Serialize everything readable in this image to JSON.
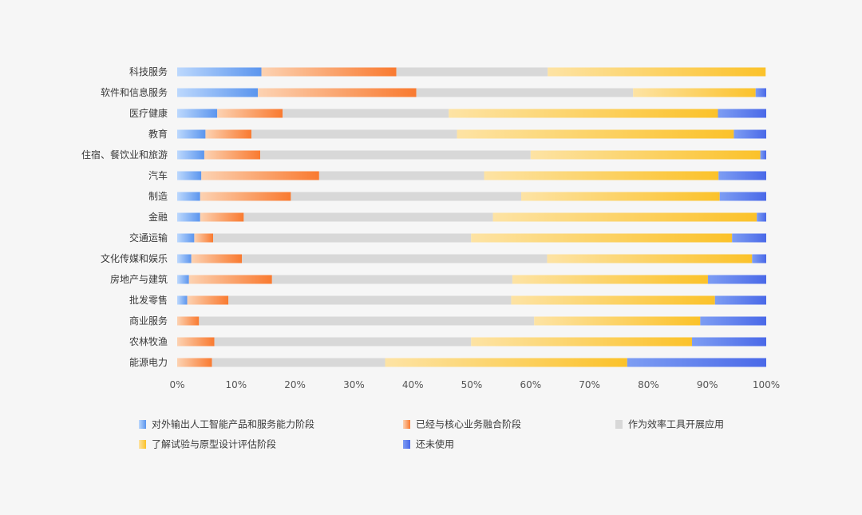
{
  "chart_data": {
    "type": "bar",
    "orientation": "horizontal",
    "stacked": true,
    "percent_stacked": true,
    "categories": [
      "科技服务",
      "软件和信息服务",
      "医疗健康",
      "教育",
      "住宿、餐饮业和旅游",
      "汽车",
      "制造",
      "金融",
      "交通运输",
      "文化传媒和娱乐",
      "房地产与建筑",
      "批发零售",
      "商业服务",
      "农林牧渔",
      "能源电力"
    ],
    "series": [
      {
        "name": "对外输出人工智能产品和服务能力阶段",
        "color": "#5b95ee",
        "color_light": "#bcd8fd",
        "values": [
          14.3,
          13.7,
          6.8,
          4.8,
          4.6,
          4.1,
          3.9,
          3.9,
          2.9,
          2.4,
          2.0,
          1.7,
          0,
          0,
          0
        ]
      },
      {
        "name": "已经与核心业务融合阶段",
        "color": "#f97a30",
        "color_light": "#fcd2b2",
        "values": [
          22.9,
          26.9,
          11.1,
          7.8,
          9.5,
          20.0,
          15.4,
          7.4,
          3.2,
          8.6,
          14.1,
          7.0,
          3.7,
          6.3,
          5.9
        ]
      },
      {
        "name": "作为效率工具开展应用",
        "color": "#d8d8d8",
        "color_light": "#d8d8d8",
        "values": [
          25.7,
          36.8,
          28.2,
          34.9,
          45.9,
          28.0,
          39.1,
          42.3,
          43.8,
          51.8,
          40.8,
          48.0,
          56.9,
          43.6,
          29.4
        ]
      },
      {
        "name": "了解试验与原型设计评估阶段",
        "color": "#fbc22a",
        "color_light": "#fde3a4",
        "values": [
          37.0,
          20.8,
          45.7,
          47.0,
          39.0,
          39.8,
          33.7,
          44.8,
          44.3,
          34.8,
          33.2,
          34.6,
          28.2,
          37.5,
          41.1
        ]
      },
      {
        "name": "还未使用",
        "color": "#4a69e8",
        "color_light": "#7d9df3",
        "values": [
          0,
          1.8,
          8.2,
          5.5,
          1.0,
          8.1,
          7.9,
          1.6,
          5.8,
          2.4,
          9.9,
          8.7,
          11.2,
          12.6,
          23.6
        ]
      }
    ],
    "xlim": [
      0,
      100
    ],
    "x_ticks": [
      "0%",
      "10%",
      "20%",
      "30%",
      "40%",
      "50%",
      "60%",
      "70%",
      "80%",
      "90%",
      "100%"
    ],
    "grid": false,
    "legend_position": "bottom"
  }
}
